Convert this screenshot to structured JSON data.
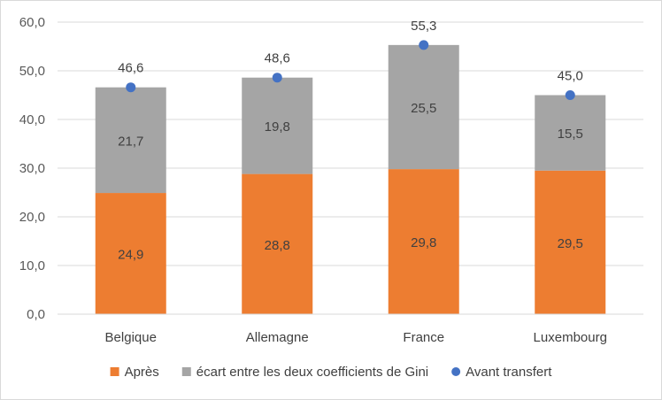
{
  "chart_data": {
    "type": "bar",
    "stacked": true,
    "categories": [
      "Belgique",
      "Allemagne",
      "France",
      "Luxembourg"
    ],
    "series": [
      {
        "name": "Après",
        "kind": "bar",
        "color": "#ed7d31",
        "values": [
          24.9,
          28.8,
          29.8,
          29.5
        ],
        "labels": [
          "24,9",
          "28,8",
          "29,8",
          "29,5"
        ]
      },
      {
        "name": "écart entre les deux coefficients de Gini",
        "kind": "bar",
        "color": "#a5a5a5",
        "values": [
          21.7,
          19.8,
          25.5,
          15.5
        ],
        "labels": [
          "21,7",
          "19,8",
          "25,5",
          "15,5"
        ]
      },
      {
        "name": "Avant transfert",
        "kind": "point",
        "color": "#4472c4",
        "values": [
          46.6,
          48.6,
          55.3,
          45.0
        ],
        "labels": [
          "46,6",
          "48,6",
          "55,3",
          "45,0"
        ]
      }
    ],
    "ylim": [
      0,
      60
    ],
    "yticks": [
      "0,0",
      "10,0",
      "20,0",
      "30,0",
      "40,0",
      "50,0",
      "60,0"
    ],
    "grid": true,
    "legend": "bottom",
    "gridline_color": "#d9d9d9"
  }
}
